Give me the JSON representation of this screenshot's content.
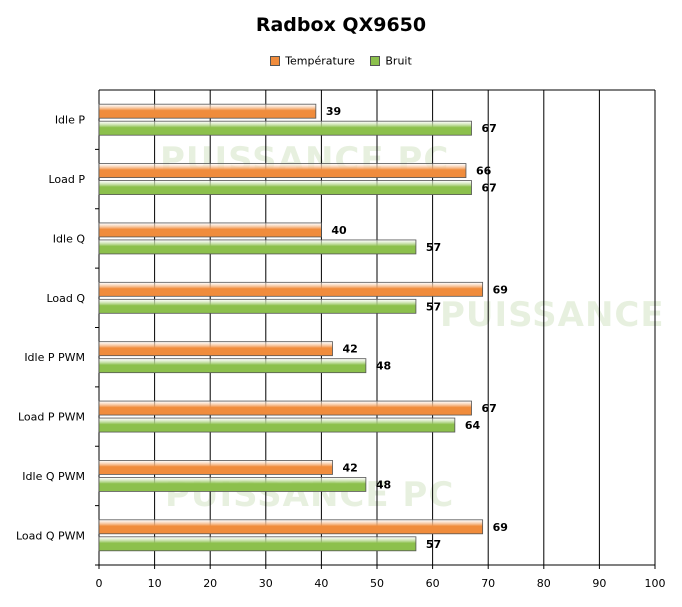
{
  "chart_data": {
    "type": "bar",
    "orientation": "horizontal",
    "title": "Radbox QX9650",
    "categories": [
      "Idle P",
      "Load P",
      "Idle Q",
      "Load Q",
      "Idle P PWM",
      "Load P PWM",
      "Idle Q PWM",
      "Load Q PWM"
    ],
    "series": [
      {
        "name": "Température",
        "color": "#f08c3c",
        "values": [
          39,
          66,
          40,
          69,
          42,
          67,
          42,
          69
        ]
      },
      {
        "name": "Bruit",
        "color": "#8cc04c",
        "values": [
          67,
          67,
          57,
          57,
          48,
          64,
          48,
          57
        ]
      }
    ],
    "xlim": [
      0,
      100
    ],
    "xticks": [
      0,
      10,
      20,
      30,
      40,
      50,
      60,
      70,
      80,
      90,
      100
    ],
    "grid": true,
    "legend_position": "top"
  },
  "watermark_text": [
    "PUISSANCE",
    "PC"
  ]
}
